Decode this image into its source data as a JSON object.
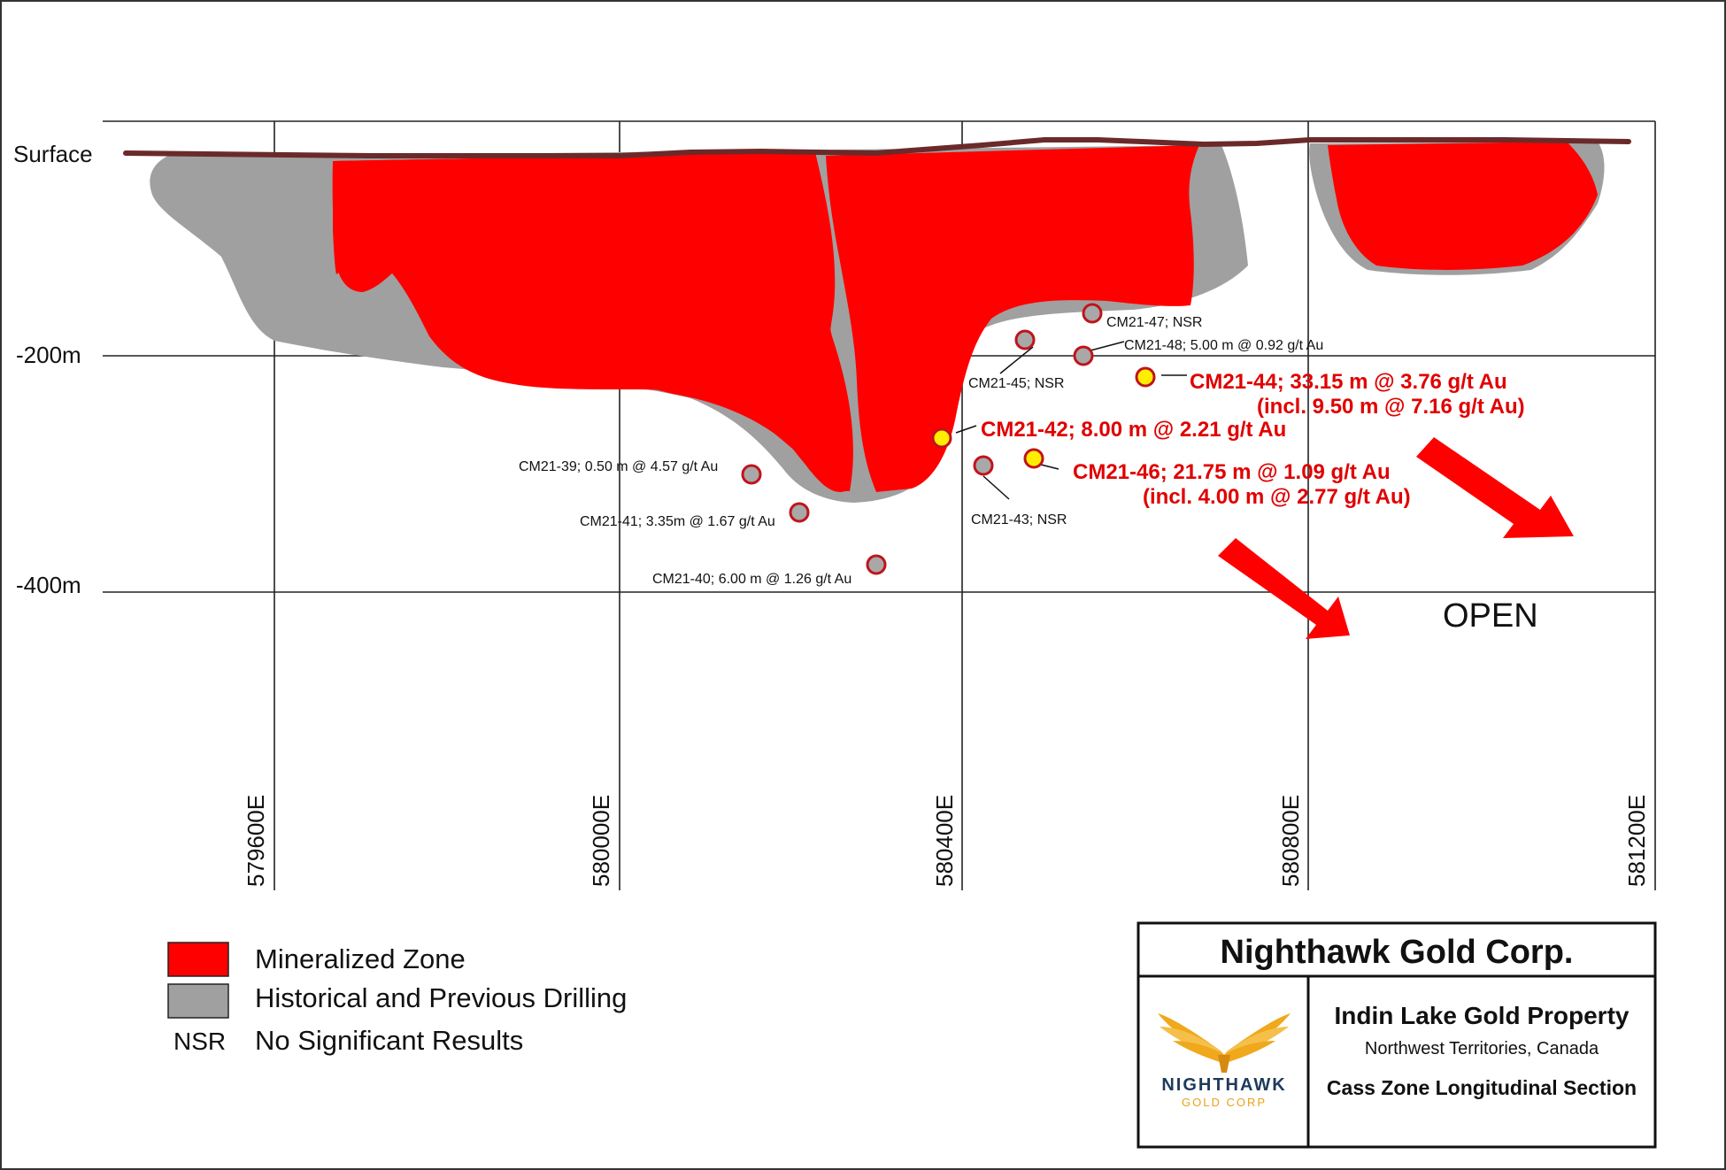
{
  "map": {
    "depth_labels": {
      "surface": "Surface",
      "m200": "-200m",
      "m400": "-400m"
    },
    "easting_labels": [
      "579600E",
      "580000E",
      "580400E",
      "580800E",
      "581200E"
    ],
    "open_label": "OPEN",
    "drill_holes": [
      {
        "id": "cm21-39",
        "label": "CM21-39; 0.50 m @ 4.57 g/t Au",
        "type": "grey",
        "highlight": false
      },
      {
        "id": "cm21-41",
        "label": "CM21-41; 3.35m @ 1.67 g/t Au",
        "type": "grey",
        "highlight": false
      },
      {
        "id": "cm21-40",
        "label": "CM21-40; 6.00 m @ 1.26 g/t Au",
        "type": "grey",
        "highlight": false
      },
      {
        "id": "cm21-42",
        "label": "CM21-42; 8.00 m @ 2.21 g/t Au",
        "type": "yellow",
        "highlight": true
      },
      {
        "id": "cm21-43",
        "label": "CM21-43; NSR",
        "type": "grey",
        "highlight": false
      },
      {
        "id": "cm21-45",
        "label": "CM21-45; NSR",
        "type": "grey",
        "highlight": false
      },
      {
        "id": "cm21-47",
        "label": "CM21-47; NSR",
        "type": "grey",
        "highlight": false
      },
      {
        "id": "cm21-48",
        "label": "CM21-48; 5.00 m @ 0.92 g/t Au",
        "type": "grey",
        "highlight": false
      },
      {
        "id": "cm21-44",
        "label": "CM21-44; 33.15 m @ 3.76 g/t Au",
        "label2": "(incl. 9.50 m @ 7.16 g/t Au)",
        "type": "yellow",
        "highlight": true
      },
      {
        "id": "cm21-46",
        "label": "CM21-46; 21.75 m @ 1.09 g/t Au",
        "label2": "(incl. 4.00 m @ 2.77 g/t Au)",
        "type": "yellow",
        "highlight": true
      }
    ],
    "colors": {
      "mineralized": "#ff0000",
      "historical": "#a0a0a0",
      "surface_line": "#6b2a2a",
      "hole_outline": "#c0141c",
      "hole_yellow": "#ffee00",
      "hole_grey": "#a8a8a8"
    }
  },
  "legend": {
    "items": [
      {
        "swatch": "red",
        "label": "Mineralized Zone"
      },
      {
        "swatch": "grey",
        "label": "Historical and Previous Drilling"
      },
      {
        "swatch": "text",
        "swatch_text": "NSR",
        "label": "No Significant Results"
      }
    ]
  },
  "title_block": {
    "company": "Nighthawk Gold Corp.",
    "property": "Indin Lake Gold Property",
    "region": "Northwest Territories, Canada",
    "section": "Cass Zone Longitudinal Section",
    "logo_name": "NIGHTHAWK",
    "logo_sub": "GOLD CORP",
    "logo_icon": "eagle-wings-icon"
  }
}
